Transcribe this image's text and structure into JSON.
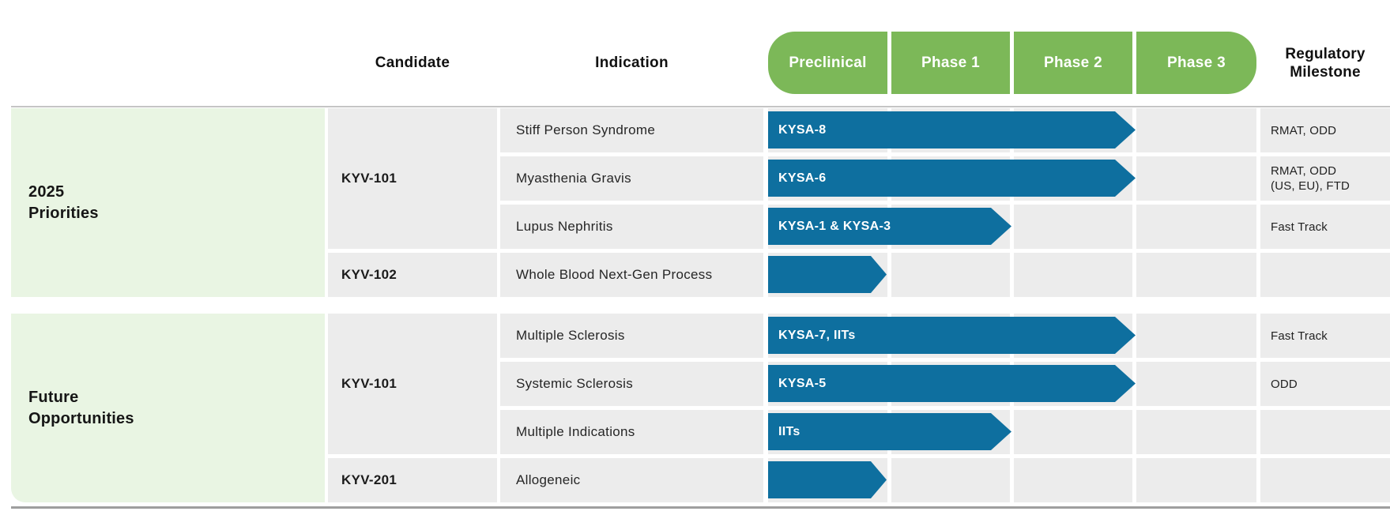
{
  "header": {
    "candidate": "Candidate",
    "indication": "Indication",
    "phases": [
      "Preclinical",
      "Phase 1",
      "Phase 2",
      "Phase 3"
    ],
    "regulatory_line1": "Regulatory",
    "regulatory_line2": "Milestone"
  },
  "colors": {
    "phase_header_green": "#7cb858",
    "group_cell_green": "#e9f5e3",
    "row_cell_gray": "#ececec",
    "arrow_blue": "#0e6f9f",
    "top_rule_gray": "#c5c5c5",
    "bottom_rule_gray": "#9e9e9e",
    "text_dark": "#1d1d1d"
  },
  "sections": [
    {
      "label_line1": "2025",
      "label_line2": "Priorities",
      "groups": [
        {
          "candidate": "KYV-101"
        },
        {
          "candidate": "KYV-102"
        }
      ],
      "rows": [
        {
          "indication": "Stiff Person Syndrome",
          "arrow_label": "KYSA-8",
          "milestone": "RMAT, ODD"
        },
        {
          "indication": "Myasthenia Gravis",
          "arrow_label": "KYSA-6",
          "milestone": "RMAT, ODD",
          "milestone2": "(US, EU), FTD"
        },
        {
          "indication": "Lupus Nephritis",
          "arrow_label": "KYSA-1 & KYSA-3",
          "milestone": "Fast Track"
        },
        {
          "indication": "Whole Blood Next-Gen Process",
          "arrow_label": "",
          "milestone": ""
        }
      ]
    },
    {
      "label_line1": "Future",
      "label_line2": "Opportunities",
      "groups": [
        {
          "candidate": "KYV-101"
        },
        {
          "candidate": "KYV-201"
        }
      ],
      "rows": [
        {
          "indication": "Multiple Sclerosis",
          "arrow_label": "KYSA-7, IITs",
          "milestone": "Fast Track"
        },
        {
          "indication": "Systemic Sclerosis",
          "arrow_label": "KYSA-5",
          "milestone": "ODD"
        },
        {
          "indication": "Multiple Indications",
          "arrow_label": "IITs",
          "milestone": ""
        },
        {
          "indication": "Allogeneic",
          "arrow_label": "",
          "milestone": ""
        }
      ]
    }
  ],
  "chart_data": {
    "type": "bar",
    "orientation": "horizontal",
    "x_categories_phases": [
      "Preclinical",
      "Phase 1",
      "Phase 2",
      "Phase 3"
    ],
    "legend": "none",
    "grid": "off",
    "rows": [
      {
        "group": "2025 Priorities",
        "candidate": "KYV-101",
        "indication": "Stiff Person Syndrome",
        "program": "KYSA-8",
        "start_phase": "Preclinical",
        "end_phase": "Phase 2",
        "phases_spanned": 3,
        "regulatory_milestone": "RMAT, ODD"
      },
      {
        "group": "2025 Priorities",
        "candidate": "KYV-101",
        "indication": "Myasthenia Gravis",
        "program": "KYSA-6",
        "start_phase": "Preclinical",
        "end_phase": "Phase 2",
        "phases_spanned": 3,
        "regulatory_milestone": "RMAT, ODD (US, EU), FTD"
      },
      {
        "group": "2025 Priorities",
        "candidate": "KYV-101",
        "indication": "Lupus Nephritis",
        "program": "KYSA-1 & KYSA-3",
        "start_phase": "Preclinical",
        "end_phase": "Phase 1",
        "phases_spanned": 2,
        "regulatory_milestone": "Fast Track"
      },
      {
        "group": "2025 Priorities",
        "candidate": "KYV-102",
        "indication": "Whole Blood Next-Gen Process",
        "program": "",
        "start_phase": "Preclinical",
        "end_phase": "Preclinical",
        "phases_spanned": 1,
        "regulatory_milestone": ""
      },
      {
        "group": "Future Opportunities",
        "candidate": "KYV-101",
        "indication": "Multiple Sclerosis",
        "program": "KYSA-7, IITs",
        "start_phase": "Preclinical",
        "end_phase": "Phase 2",
        "phases_spanned": 3,
        "regulatory_milestone": "Fast Track"
      },
      {
        "group": "Future Opportunities",
        "candidate": "KYV-101",
        "indication": "Systemic Sclerosis",
        "program": "KYSA-5",
        "start_phase": "Preclinical",
        "end_phase": "Phase 2",
        "phases_spanned": 3,
        "regulatory_milestone": "ODD"
      },
      {
        "group": "Future Opportunities",
        "candidate": "KYV-101",
        "indication": "Multiple Indications",
        "program": "IITs",
        "start_phase": "Preclinical",
        "end_phase": "Phase 1",
        "phases_spanned": 2,
        "regulatory_milestone": ""
      },
      {
        "group": "Future Opportunities",
        "candidate": "KYV-201",
        "indication": "Allogeneic",
        "program": "",
        "start_phase": "Preclinical",
        "end_phase": "Preclinical",
        "phases_spanned": 1,
        "regulatory_milestone": ""
      }
    ]
  }
}
